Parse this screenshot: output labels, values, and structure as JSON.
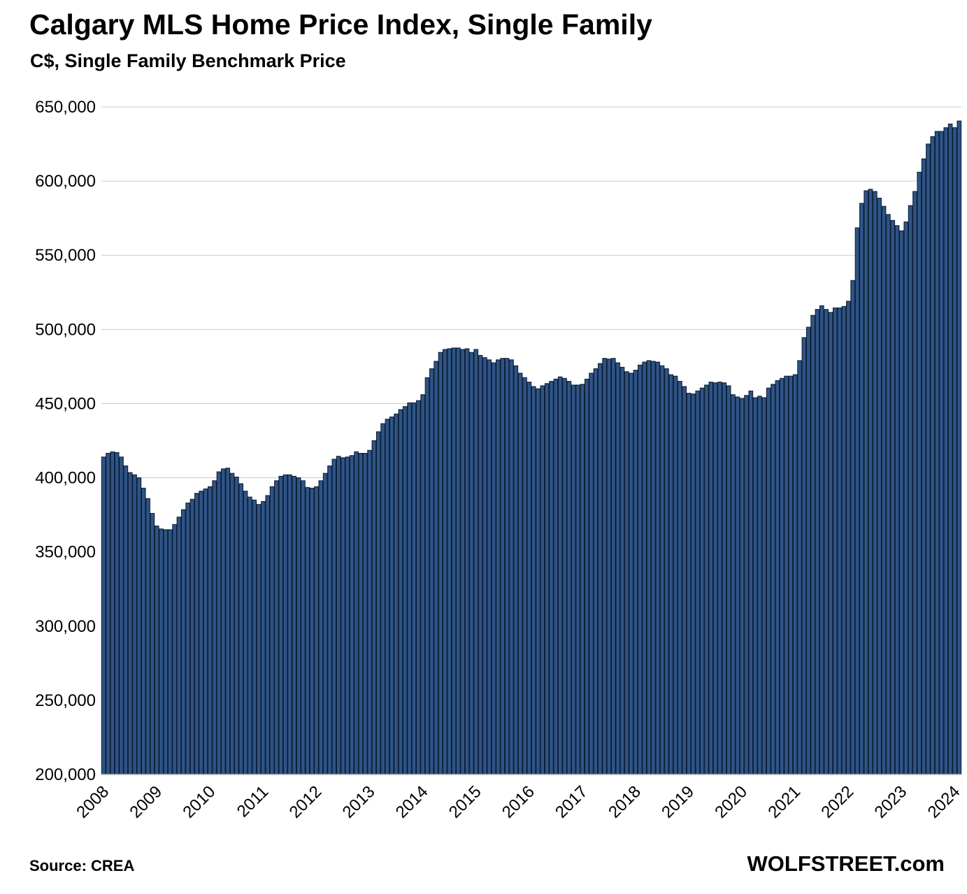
{
  "chart_data": {
    "type": "bar",
    "title": "Calgary MLS Home Price Index, Single Family",
    "subtitle": "C$, Single Family Benchmark Price",
    "xlabel": "",
    "ylabel": "",
    "ylim": [
      200000,
      650000
    ],
    "yticks": [
      200000,
      250000,
      300000,
      350000,
      400000,
      450000,
      500000,
      550000,
      600000,
      650000
    ],
    "ytick_labels": [
      "200,000",
      "250,000",
      "300,000",
      "350,000",
      "400,000",
      "450,000",
      "500,000",
      "550,000",
      "600,000",
      "650,000"
    ],
    "xtick_labels": [
      "2008",
      "2009",
      "2010",
      "2011",
      "2012",
      "2013",
      "2014",
      "2015",
      "2016",
      "2017",
      "2018",
      "2019",
      "2020",
      "2021",
      "2022",
      "2023",
      "2024"
    ],
    "start": "2008-01",
    "frequency": "monthly",
    "grid": true,
    "colors": {
      "bar_fill": "#2f5486",
      "bar_edge": "#0d1f36",
      "grid": "#b9d0dc",
      "axis": "#bfbfbf"
    },
    "values": [
      414000,
      416500,
      417500,
      417000,
      414000,
      408000,
      403500,
      402000,
      400000,
      393000,
      386000,
      376000,
      367500,
      365500,
      365000,
      365000,
      368500,
      373500,
      378500,
      383000,
      385500,
      389500,
      391000,
      392500,
      394000,
      398000,
      404000,
      406000,
      406500,
      403000,
      400500,
      396000,
      391000,
      387000,
      385000,
      382000,
      384000,
      388000,
      394000,
      398000,
      401000,
      402000,
      402000,
      401000,
      400000,
      398000,
      393500,
      393000,
      394000,
      398000,
      403000,
      408000,
      412500,
      414500,
      413500,
      414000,
      415000,
      417500,
      416500,
      416500,
      418500,
      425000,
      431000,
      436500,
      439500,
      441000,
      443000,
      446000,
      448000,
      450500,
      450500,
      452000,
      456000,
      467500,
      473500,
      478500,
      484500,
      486500,
      487000,
      487500,
      487500,
      486500,
      487000,
      484500,
      486500,
      482500,
      481000,
      479500,
      477500,
      479500,
      480500,
      480500,
      479500,
      475500,
      470500,
      467500,
      464500,
      461500,
      460000,
      462000,
      463500,
      465000,
      466500,
      468000,
      467000,
      465000,
      462500,
      462500,
      463000,
      466500,
      470500,
      473500,
      477000,
      480500,
      480000,
      480500,
      477500,
      474500,
      471500,
      470500,
      472500,
      476000,
      478000,
      479000,
      478500,
      478000,
      475500,
      473500,
      469500,
      468500,
      465000,
      461500,
      457000,
      456500,
      458500,
      460500,
      462500,
      464500,
      464000,
      464500,
      464000,
      462000,
      456000,
      454500,
      453500,
      455500,
      458500,
      454000,
      455000,
      454000,
      460500,
      463000,
      465500,
      467000,
      468500,
      468500,
      469500,
      479000,
      494500,
      501500,
      509500,
      513500,
      516000,
      513500,
      511500,
      514500,
      514500,
      515500,
      519000,
      533000,
      568500,
      585000,
      593500,
      594500,
      593000,
      588500,
      583000,
      577500,
      573500,
      570000,
      566500,
      572500,
      583500,
      593000,
      606000,
      615000,
      625000,
      630000,
      633500,
      633500,
      636000,
      638500,
      636000,
      640500
    ]
  },
  "footer": {
    "source": "Source: CREA",
    "brand": "WOLFSTREET.com"
  }
}
